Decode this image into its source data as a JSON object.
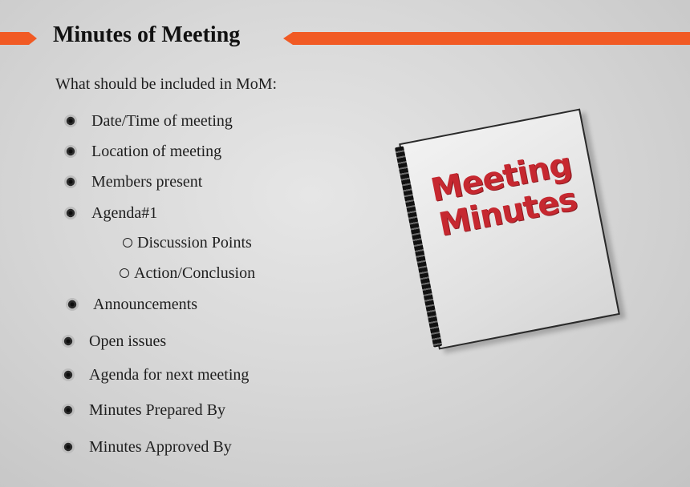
{
  "slide": {
    "title": "Minutes of Meeting",
    "intro": "What should be included in MoM:",
    "items": [
      {
        "label": "Date/Time of meeting"
      },
      {
        "label": "Location of meeting"
      },
      {
        "label": "Members present"
      },
      {
        "label": "Agenda#1"
      },
      {
        "label": "Discussion Points"
      },
      {
        "label": "Action/Conclusion"
      },
      {
        "label": "Announcements"
      },
      {
        "label": "Open issues"
      },
      {
        "label": "Agenda for next meeting"
      },
      {
        "label": "Minutes Prepared By"
      },
      {
        "label": "Minutes Approved By"
      }
    ],
    "illustration": {
      "line1": "Meeting",
      "line2": "Minutes"
    }
  },
  "colors": {
    "accent": "#f15a24",
    "cover_text": "#c62830"
  },
  "icons": {
    "bullet": "bullet-hole-icon",
    "sub_bullet": "circle-bullet-icon"
  }
}
